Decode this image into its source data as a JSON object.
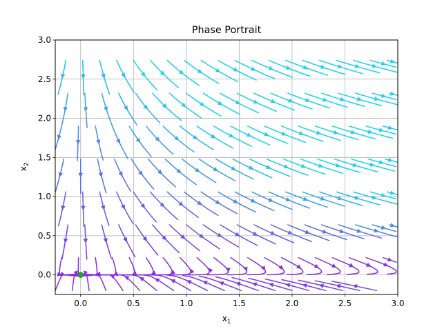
{
  "chart_data": {
    "type": "streamplot",
    "title": "Phase Portrait",
    "xlabel_base": "x",
    "xlabel_sub": "1",
    "ylabel_base": "x",
    "ylabel_sub": "2",
    "xlim": [
      -0.24,
      3.0
    ],
    "ylim": [
      -0.25,
      3.0
    ],
    "xticks": [
      0.0,
      0.5,
      1.0,
      1.5,
      2.0,
      2.5,
      3.0
    ],
    "xtick_labels": [
      "0.0",
      "0.5",
      "1.0",
      "1.5",
      "2.0",
      "2.5",
      "3.0"
    ],
    "yticks": [
      0.0,
      0.5,
      1.0,
      1.5,
      2.0,
      2.5,
      3.0
    ],
    "ytick_labels": [
      "0.0",
      "0.5",
      "1.0",
      "1.5",
      "2.0",
      "2.5",
      "3.0"
    ],
    "grid": true,
    "equilibrium_point": [
      0.0,
      0.0
    ],
    "colormap": "cool",
    "colors": {
      "equilibrium_marker": "#2ca02c",
      "grid": "#b0b0b0",
      "low_speed": "#8a2be2",
      "high_speed": "#1ed2ee"
    }
  }
}
